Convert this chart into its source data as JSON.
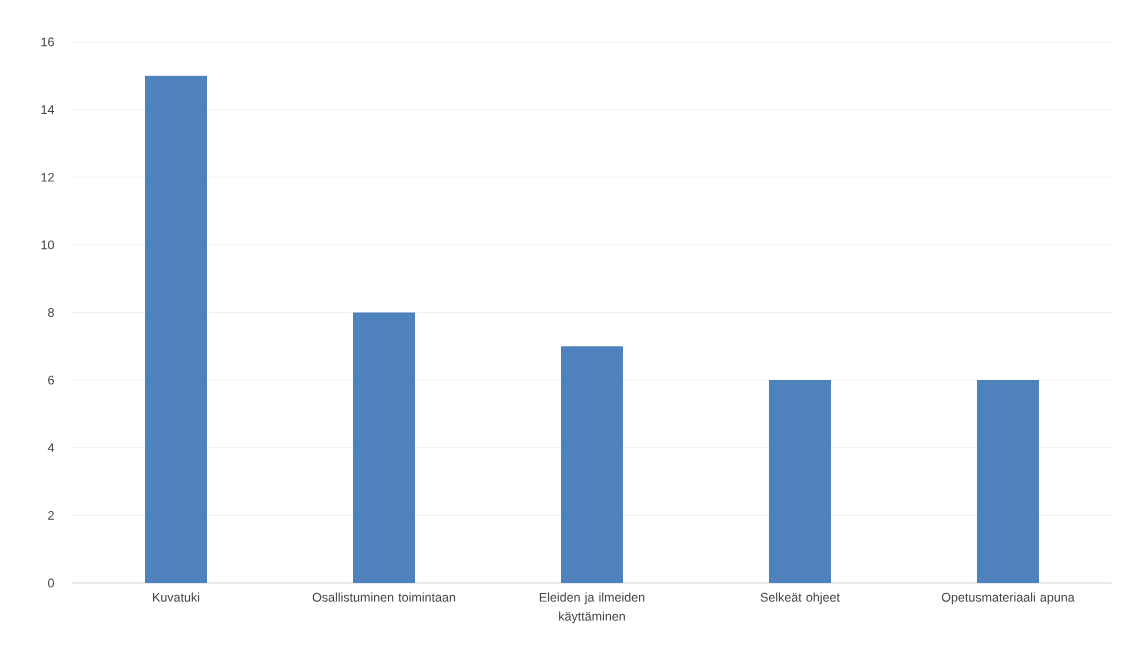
{
  "chart_data": {
    "type": "bar",
    "categories": [
      "Kuvatuki",
      "Osallistuminen toimintaan",
      "Eleiden ja ilmeiden käyttäminen",
      "Selkeät ohjeet",
      "Opetusmateriaali apuna"
    ],
    "values": [
      15,
      8,
      7,
      6,
      6
    ],
    "color": "#4f81bd",
    "ylim": [
      0,
      16
    ],
    "yticks": [
      0,
      2,
      4,
      6,
      8,
      10,
      12,
      14,
      16
    ],
    "grid": "y"
  }
}
